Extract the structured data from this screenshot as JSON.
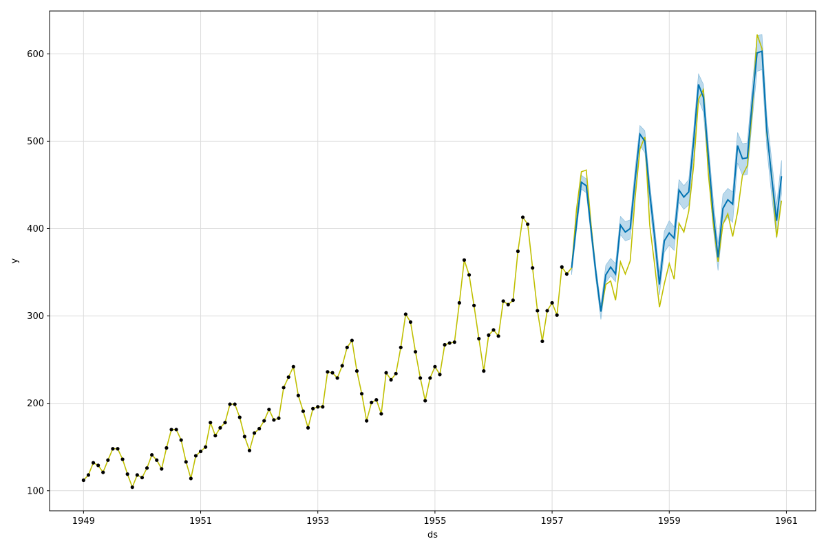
{
  "chart_data": {
    "type": "line",
    "title": "",
    "xlabel": "ds",
    "ylabel": "y",
    "xlim": [
      1948.42,
      1961.5
    ],
    "ylim": [
      77,
      649
    ],
    "grid": true,
    "legend": "none",
    "xticks": [
      1949,
      1951,
      1953,
      1955,
      1957,
      1959,
      1961
    ],
    "xtick_labels": [
      "1949",
      "1951",
      "1953",
      "1955",
      "1957",
      "1959",
      "1961"
    ],
    "yticks": [
      100,
      200,
      300,
      400,
      500,
      600
    ],
    "ytick_labels": [
      "100",
      "200",
      "300",
      "400",
      "500",
      "600"
    ],
    "colors": {
      "observed_points": "#000000",
      "fitted_line": "#bfbf00",
      "forecast_line": "#0072b2",
      "forecast_band": "#a6cde6"
    },
    "observed": {
      "x_start": 1949.0,
      "step": 0.083333,
      "y": [
        112,
        118,
        132,
        129,
        121,
        135,
        148,
        148,
        136,
        119,
        104,
        118,
        115,
        126,
        141,
        135,
        125,
        149,
        170,
        170,
        158,
        133,
        114,
        140,
        145,
        150,
        178,
        163,
        172,
        178,
        199,
        199,
        184,
        162,
        146,
        166,
        171,
        180,
        193,
        181,
        183,
        218,
        230,
        242,
        209,
        191,
        172,
        194,
        196,
        196,
        236,
        235,
        229,
        243,
        264,
        272,
        237,
        211,
        180,
        201,
        204,
        188,
        235,
        227,
        234,
        264,
        302,
        293,
        259,
        229,
        203,
        229,
        242,
        233,
        267,
        269,
        270,
        315,
        364,
        347,
        312,
        274,
        237,
        278,
        284,
        277,
        317,
        313,
        318,
        374,
        413,
        405,
        355,
        306,
        271,
        306,
        315,
        301,
        356,
        348
      ]
    },
    "fitted": {
      "x_start": 1949.0,
      "step": 0.083333,
      "y": [
        112,
        118,
        132,
        129,
        121,
        135,
        148,
        148,
        136,
        119,
        104,
        118,
        115,
        126,
        141,
        135,
        125,
        149,
        170,
        170,
        158,
        133,
        114,
        140,
        145,
        150,
        178,
        163,
        172,
        178,
        199,
        199,
        184,
        162,
        146,
        166,
        171,
        180,
        193,
        181,
        183,
        218,
        230,
        242,
        209,
        191,
        172,
        194,
        196,
        196,
        236,
        235,
        229,
        243,
        264,
        272,
        237,
        211,
        180,
        201,
        204,
        188,
        235,
        227,
        234,
        264,
        302,
        293,
        259,
        229,
        203,
        229,
        242,
        233,
        267,
        269,
        270,
        315,
        364,
        347,
        312,
        274,
        237,
        278,
        284,
        277,
        317,
        313,
        318,
        374,
        413,
        405,
        355,
        306,
        271,
        306,
        315,
        301,
        356,
        348,
        355,
        422,
        465,
        467,
        404,
        347,
        305,
        336,
        340,
        318,
        362,
        348,
        363,
        435,
        491,
        505,
        404,
        359,
        310,
        337,
        360,
        342,
        406,
        396,
        420,
        472,
        548,
        559,
        463,
        407,
        362,
        405,
        417,
        391,
        419,
        461,
        472,
        535,
        622,
        606,
        508,
        461,
        390,
        432
      ]
    },
    "forecast": {
      "x_start": 1957.333,
      "step": 0.083333,
      "y": [
        355,
        405,
        453,
        449,
        398,
        348,
        305,
        347,
        356,
        348,
        404,
        396,
        400,
        455,
        508,
        500,
        441,
        391,
        336,
        386,
        395,
        389,
        444,
        436,
        442,
        500,
        565,
        550,
        484,
        418,
        367,
        423,
        433,
        428,
        495,
        480,
        481,
        545,
        601,
        603,
        512,
        458,
        409,
        460
      ],
      "lower": [
        347,
        397,
        445,
        441,
        390,
        340,
        296,
        338,
        346,
        339,
        393,
        386,
        388,
        441,
        495,
        487,
        428,
        378,
        324,
        373,
        381,
        375,
        430,
        422,
        427,
        483,
        548,
        533,
        466,
        401,
        352,
        405,
        413,
        407,
        475,
        461,
        462,
        524,
        580,
        582,
        491,
        437,
        389,
        440
      ],
      "upper": [
        360,
        413,
        461,
        457,
        406,
        356,
        313,
        358,
        366,
        360,
        414,
        408,
        410,
        468,
        518,
        512,
        453,
        403,
        349,
        397,
        409,
        402,
        456,
        449,
        456,
        514,
        577,
        565,
        498,
        435,
        382,
        439,
        446,
        442,
        510,
        497,
        498,
        563,
        621,
        622,
        530,
        478,
        427,
        478
      ]
    }
  }
}
